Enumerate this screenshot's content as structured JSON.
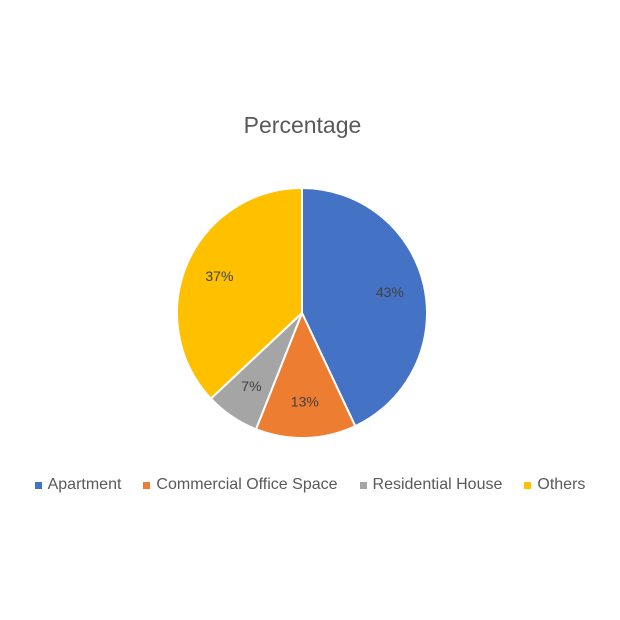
{
  "chart_data": {
    "type": "pie",
    "title": "Percentage",
    "categories": [
      "Apartment",
      "Commercial Office Space",
      "Residential House",
      "Others"
    ],
    "values": [
      43,
      13,
      7,
      37
    ],
    "data_labels": [
      "43%",
      "13%",
      "7%",
      "37%"
    ],
    "colors": [
      "#4472C4",
      "#ED7D31",
      "#A5A5A5",
      "#FFC000"
    ],
    "legend_position": "bottom"
  }
}
